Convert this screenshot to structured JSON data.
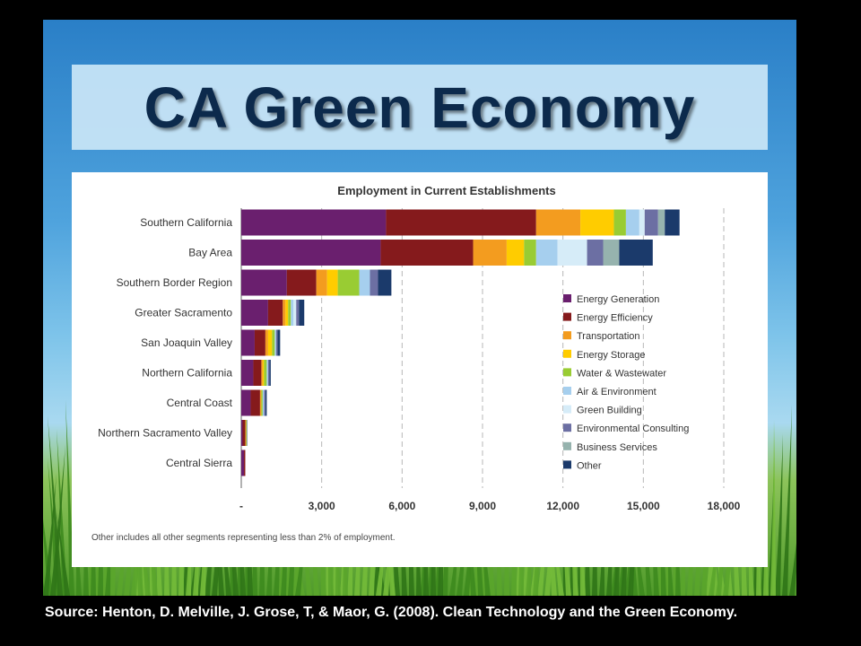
{
  "slide": {
    "title": "CA Green Economy",
    "source": "Source: Henton, D. Melville, J. Grose, T, & Maor, G. (2008). Clean Technology and the Green Economy."
  },
  "chart_data": {
    "type": "bar",
    "orientation": "horizontal",
    "stacked": true,
    "title": "Employment in Current Establishments",
    "categories": [
      "Southern California",
      "Bay Area",
      "Southern Border Region",
      "Greater Sacramento",
      "San Joaquin Valley",
      "Northern California",
      "Central Coast",
      "Northern Sacramento Valley",
      "Central Sierra"
    ],
    "series": [
      {
        "name": "Energy Generation",
        "color": "#6a1f6e",
        "values": [
          5400,
          5200,
          1700,
          1000,
          500,
          450,
          350,
          50,
          100
        ]
      },
      {
        "name": "Energy Efficiency",
        "color": "#851a1c",
        "values": [
          5600,
          3450,
          1100,
          550,
          400,
          300,
          350,
          100,
          50
        ]
      },
      {
        "name": "Transportation",
        "color": "#f39c1f",
        "values": [
          1650,
          1250,
          400,
          100,
          100,
          50,
          50,
          30,
          0
        ]
      },
      {
        "name": "Energy Storage",
        "color": "#ffcc00",
        "values": [
          1250,
          650,
          400,
          100,
          150,
          50,
          0,
          0,
          0
        ]
      },
      {
        "name": "Water & Wastewater",
        "color": "#99cc33",
        "values": [
          450,
          450,
          800,
          100,
          100,
          100,
          50,
          30,
          0
        ]
      },
      {
        "name": "Air & Environment",
        "color": "#a6cfee",
        "values": [
          500,
          800,
          400,
          100,
          50,
          50,
          50,
          0,
          0
        ]
      },
      {
        "name": "Green Building",
        "color": "#d6ecf8",
        "values": [
          200,
          1100,
          0,
          100,
          0,
          0,
          0,
          0,
          0
        ]
      },
      {
        "name": "Environmental Consulting",
        "color": "#6c6fa3",
        "values": [
          500,
          600,
          300,
          100,
          50,
          50,
          50,
          20,
          0
        ]
      },
      {
        "name": "Business Services",
        "color": "#96b3ae",
        "values": [
          250,
          600,
          0,
          0,
          0,
          0,
          0,
          0,
          0
        ]
      },
      {
        "name": "Other",
        "color": "#1b3a6b",
        "values": [
          550,
          1250,
          500,
          200,
          100,
          50,
          50,
          0,
          0
        ]
      }
    ],
    "xlim": [
      0,
      18000
    ],
    "x_ticks": [
      "-",
      "3,000",
      "6,000",
      "9,000",
      "12,000",
      "15,000",
      "18,000"
    ],
    "grid": "vertical-dashed",
    "legend_position": "right-inside",
    "footnote": "Other includes all other segments representing less than 2% of employment."
  }
}
